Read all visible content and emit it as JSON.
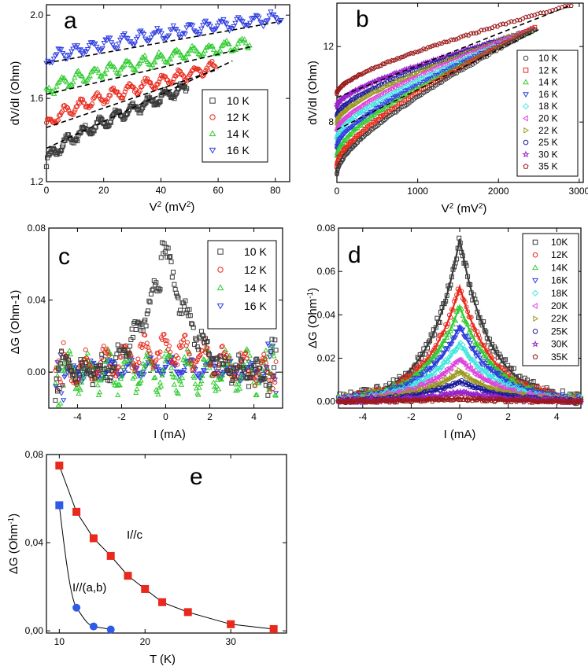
{
  "colors": {
    "10K": "#3a3a3a",
    "12K": "#e8291c",
    "14K": "#33cc33",
    "16K": "#2f3ee0",
    "18K": "#44e6e0",
    "20K": "#dd44dd",
    "22K": "#9a9a22",
    "25K": "#1a1a99",
    "30K": "#9a22cc",
    "35K": "#9a1a1a",
    "e_c": "#e8291c",
    "e_ab": "#2f5ae8"
  },
  "chart_data": [
    {
      "id": "a",
      "type": "scatter",
      "letter": "a",
      "xlabel": "V",
      "xlabel_sup": "2",
      "xlabel_unit": " (mV",
      "xlabel_unit_sup": "2",
      "xlabel_close": ")",
      "ylabel": "dV/dI (Ohm)",
      "xlim": [
        0,
        85
      ],
      "ylim": [
        1.2,
        2.05
      ],
      "xticks": [
        0,
        20,
        40,
        60,
        80
      ],
      "yticks": [
        1.2,
        1.6,
        2.0
      ],
      "yticklabels": [
        "1.2",
        "1.6",
        "2.0"
      ],
      "series": [
        {
          "name": "10 K",
          "marker": "square",
          "color_key": "10K",
          "x0": 0,
          "x1": 49,
          "y0": 1.28,
          "y1": 1.65,
          "fit": [
            0,
            65,
            1.36,
            1.78
          ]
        },
        {
          "name": "12 K",
          "marker": "circle",
          "color_key": "12K",
          "x0": 0,
          "x1": 59,
          "y0": 1.46,
          "y1": 1.75,
          "fit": [
            0,
            60,
            1.46,
            1.74
          ]
        },
        {
          "name": "14 K",
          "marker": "triangle-up",
          "color_key": "14K",
          "x0": 0,
          "x1": 71,
          "y0": 1.62,
          "y1": 1.87,
          "fit": [
            0,
            72,
            1.62,
            1.85
          ]
        },
        {
          "name": "16 K",
          "marker": "triangle-down",
          "color_key": "16K",
          "x0": 0,
          "x1": 82,
          "y0": 1.77,
          "y1": 1.99,
          "fit": [
            0,
            82,
            1.77,
            1.97
          ]
        }
      ]
    },
    {
      "id": "b",
      "type": "scatter",
      "letter": "b",
      "xlabel": "V",
      "xlabel_sup": "2",
      "xlabel_unit": " (mV",
      "xlabel_unit_sup": "2",
      "xlabel_close": ")",
      "ylabel": "dV/dI (Ohm)",
      "xlim": [
        0,
        3050
      ],
      "ylim": [
        4.8,
        14.3
      ],
      "xticks": [
        0,
        1000,
        2000,
        3000
      ],
      "yticks": [
        8,
        12
      ],
      "yticklabels": [
        "8",
        "12"
      ],
      "series": [
        {
          "name": "10 K",
          "marker": "circle",
          "color_key": "10K",
          "start": 5.2,
          "end": 12.9,
          "xend": 2450
        },
        {
          "name": "12 K",
          "marker": "square",
          "color_key": "12K",
          "start": 5.6,
          "end": 13.0,
          "xend": 2450
        },
        {
          "name": "14 K",
          "marker": "triangle-up",
          "color_key": "14K",
          "start": 6.2,
          "end": 12.9,
          "xend": 2450
        },
        {
          "name": "16 K",
          "marker": "triangle-down",
          "color_key": "16K",
          "start": 6.6,
          "end": 12.8,
          "xend": 2400
        },
        {
          "name": "18 K",
          "marker": "diamond",
          "color_key": "18K",
          "start": 7.1,
          "end": 12.8,
          "xend": 2400
        },
        {
          "name": "20 K",
          "marker": "triangle-left",
          "color_key": "20K",
          "start": 7.5,
          "end": 12.9,
          "xend": 2400
        },
        {
          "name": "22 K",
          "marker": "triangle-right",
          "color_key": "22K",
          "start": 7.9,
          "end": 12.9,
          "xend": 2400
        },
        {
          "name": "25 K",
          "marker": "circle",
          "color_key": "25K",
          "start": 8.3,
          "end": 12.9,
          "xend": 2400
        },
        {
          "name": "30 K",
          "marker": "star",
          "color_key": "30K",
          "start": 8.8,
          "end": 12.9,
          "xend": 2450
        },
        {
          "name": "35 K",
          "marker": "pentagon",
          "color_key": "35K",
          "start": 9.5,
          "end": 14.2,
          "xend": 2900
        }
      ],
      "fit": [
        0,
        2900,
        9.3,
        14.2
      ]
    },
    {
      "id": "c",
      "type": "scatter",
      "letter": "c",
      "xlabel": "I (mA)",
      "ylabel": "ΔG (Ohm-1)",
      "xlim": [
        -5.3,
        5.3
      ],
      "ylim": [
        -0.02,
        0.08
      ],
      "xticks": [
        -4,
        -2,
        0,
        2,
        4
      ],
      "yticks": [
        0.0,
        0.04,
        0.08
      ],
      "yticklabels": [
        "0.00",
        "0.04",
        "0.08"
      ],
      "series": [
        {
          "name": "10 K",
          "marker": "square",
          "color_key": "10K",
          "peak": 0.063,
          "width": 1.6,
          "noise": 0.008
        },
        {
          "name": "12 K",
          "marker": "circle",
          "color_key": "12K",
          "peak": 0.012,
          "width": 2.0,
          "noise": 0.007
        },
        {
          "name": "14 K",
          "marker": "triangle-up",
          "color_key": "14K",
          "peak": 0.0,
          "width": 2.0,
          "noise": 0.009
        },
        {
          "name": "16 K",
          "marker": "triangle-down",
          "color_key": "16K",
          "peak": 0.003,
          "width": 2.0,
          "noise": 0.004
        }
      ]
    },
    {
      "id": "d",
      "type": "scatter",
      "letter": "d",
      "xlabel": "I (mA)",
      "ylabel": "ΔG (Ohm",
      "ylabel_sup": "-1",
      "ylabel_close": ")",
      "xlim": [
        -5,
        5
      ],
      "ylim": [
        -0.003,
        0.08
      ],
      "xticks": [
        -4,
        -2,
        0,
        2,
        4
      ],
      "yticks": [
        0.0,
        0.02,
        0.04,
        0.06,
        0.08
      ],
      "yticklabels": [
        "0.00",
        "0.02",
        "0.04",
        "0.06",
        "0.08"
      ],
      "series": [
        {
          "name": "10K",
          "marker": "square",
          "color_key": "10K",
          "peak": 0.075,
          "width": 1.25
        },
        {
          "name": "12K",
          "marker": "circle",
          "color_key": "12K",
          "peak": 0.053,
          "width": 1.35
        },
        {
          "name": "14K",
          "marker": "triangle-up",
          "color_key": "14K",
          "peak": 0.044,
          "width": 1.4
        },
        {
          "name": "16K",
          "marker": "triangle-down",
          "color_key": "16K",
          "peak": 0.035,
          "width": 1.45
        },
        {
          "name": "18K",
          "marker": "diamond",
          "color_key": "18K",
          "peak": 0.027,
          "width": 1.5
        },
        {
          "name": "20K",
          "marker": "triangle-left",
          "color_key": "20K",
          "peak": 0.02,
          "width": 1.55
        },
        {
          "name": "22K",
          "marker": "triangle-right",
          "color_key": "22K",
          "peak": 0.014,
          "width": 1.6
        },
        {
          "name": "25K",
          "marker": "circle",
          "color_key": "25K",
          "peak": 0.0095,
          "width": 1.65
        },
        {
          "name": "30K",
          "marker": "star",
          "color_key": "30K",
          "peak": 0.0045,
          "width": 1.7
        },
        {
          "name": "35K",
          "marker": "pentagon",
          "color_key": "35K",
          "peak": 0.0015,
          "width": 1.8
        }
      ]
    },
    {
      "id": "e",
      "type": "line",
      "letter": "e",
      "xlabel": "T (K)",
      "ylabel": "ΔG (Ohm",
      "ylabel_sup": "-1",
      "ylabel_close": ")",
      "xlim": [
        8.5,
        36.5
      ],
      "ylim": [
        -0.001,
        0.08
      ],
      "xticks": [
        10,
        20,
        30
      ],
      "yticks": [
        0.0,
        0.04,
        0.08
      ],
      "yticklabels": [
        "0,00",
        "0,04",
        "0,08"
      ],
      "series": [
        {
          "name": "I//c",
          "marker": "square",
          "color_key": "e_c",
          "x": [
            10,
            12,
            14,
            16,
            18,
            20,
            22,
            25,
            30,
            35
          ],
          "y": [
            0.075,
            0.054,
            0.042,
            0.034,
            0.025,
            0.019,
            0.013,
            0.0085,
            0.003,
            0.0008
          ]
        },
        {
          "name": "I//(a,b)",
          "marker": "mixed",
          "color_key": "e_ab",
          "x": [
            10,
            12,
            14,
            16
          ],
          "y": [
            0.057,
            0.0105,
            0.002,
            0.0006
          ]
        }
      ],
      "annotations": [
        "I//c",
        "I//(a,b)"
      ]
    }
  ]
}
